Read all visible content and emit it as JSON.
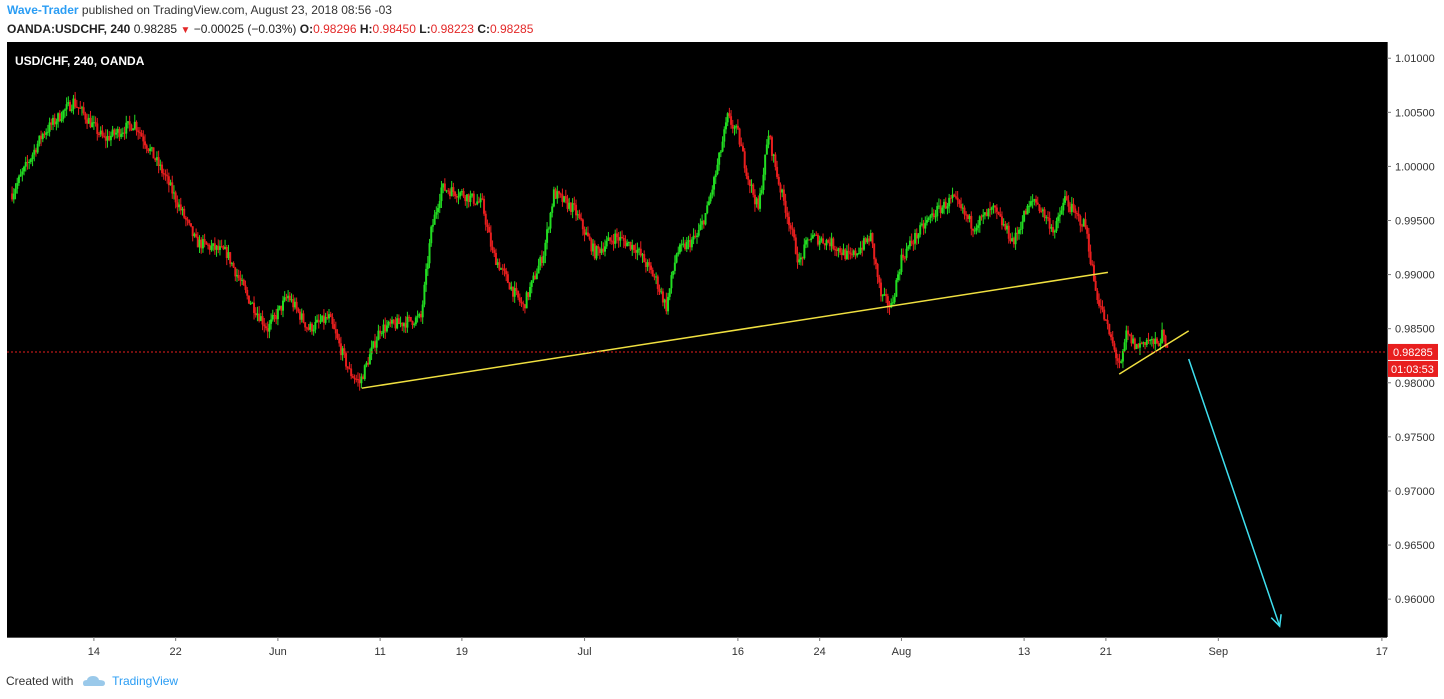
{
  "header": {
    "author": "Wave-Trader",
    "published_text": " published on TradingView.com, August 23, 2018 08:56 -03",
    "symbol": "OANDA:USDCHF, 240",
    "last": "0.98285",
    "change": "−0.00025 (−0.03%)",
    "o_label": "O:",
    "o_value": "0.98296",
    "h_label": "H:",
    "h_value": "0.98450",
    "l_label": "L:",
    "l_value": "0.98223",
    "c_label": "C:",
    "c_value": "0.98285"
  },
  "footer": {
    "created_with": "Created with",
    "brand": "TradingView"
  },
  "colors": {
    "background": "#000000",
    "bull": "#22dd22",
    "bear": "#e81e1e",
    "trendline": "#f0e040",
    "arrow": "#3fe0f0",
    "price_tag": "#e81e1e"
  },
  "chart_data": {
    "type": "candlestick",
    "title": "USD/CHF, 240, OANDA",
    "xlabel": "",
    "ylabel": "",
    "ylim": [
      0.9565,
      1.0115
    ],
    "y_ticks": [
      "1.01000",
      "1.00500",
      "1.00000",
      "0.99500",
      "0.99000",
      "0.98500",
      "0.98000",
      "0.97500",
      "0.97000",
      "0.96500",
      "0.96000"
    ],
    "x_ticks": [
      {
        "label": "14",
        "day": 14
      },
      {
        "label": "22",
        "day": 22
      },
      {
        "label": "Jun",
        "day": 32
      },
      {
        "label": "11",
        "day": 42
      },
      {
        "label": "19",
        "day": 50
      },
      {
        "label": "Jul",
        "day": 62
      },
      {
        "label": "16",
        "day": 77
      },
      {
        "label": "24",
        "day": 85
      },
      {
        "label": "Aug",
        "day": 93
      },
      {
        "label": "13",
        "day": 105
      },
      {
        "label": "21",
        "day": 113
      },
      {
        "label": "Sep",
        "day": 124
      },
      {
        "label": "17",
        "day": 140
      }
    ],
    "x_range_days": [
      5.5,
      140.5
    ],
    "series_anchors": [
      [
        6,
        0.9975
      ],
      [
        9,
        1.003
      ],
      [
        12,
        1.006
      ],
      [
        15,
        1.0025
      ],
      [
        18,
        1.004
      ],
      [
        21,
        0.999
      ],
      [
        24,
        0.993
      ],
      [
        27,
        0.992
      ],
      [
        29,
        0.988
      ],
      [
        31,
        0.985
      ],
      [
        33,
        0.988
      ],
      [
        35,
        0.985
      ],
      [
        37,
        0.986
      ],
      [
        39,
        0.981
      ],
      [
        40,
        0.98
      ],
      [
        42,
        0.985
      ],
      [
        44,
        0.9855
      ],
      [
        46,
        0.986
      ],
      [
        47,
        0.994
      ],
      [
        48,
        0.998
      ],
      [
        50,
        0.9975
      ],
      [
        52,
        0.9965
      ],
      [
        53,
        0.992
      ],
      [
        55,
        0.9885
      ],
      [
        56,
        0.987
      ],
      [
        58,
        0.992
      ],
      [
        59,
        0.9975
      ],
      [
        61,
        0.996
      ],
      [
        63,
        0.992
      ],
      [
        65,
        0.9935
      ],
      [
        67,
        0.9925
      ],
      [
        69,
        0.9895
      ],
      [
        70,
        0.987
      ],
      [
        71,
        0.992
      ],
      [
        73,
        0.9935
      ],
      [
        74,
        0.996
      ],
      [
        75,
        1.0
      ],
      [
        76,
        1.0045
      ],
      [
        77,
        1.003
      ],
      [
        78,
        0.999
      ],
      [
        79,
        0.996
      ],
      [
        80,
        1.003
      ],
      [
        81,
        0.9985
      ],
      [
        82,
        0.995
      ],
      [
        83,
        0.991
      ],
      [
        84,
        0.9935
      ],
      [
        86,
        0.993
      ],
      [
        88,
        0.9915
      ],
      [
        90,
        0.9935
      ],
      [
        91,
        0.988
      ],
      [
        92,
        0.987
      ],
      [
        93,
        0.9915
      ],
      [
        94,
        0.993
      ],
      [
        96,
        0.9955
      ],
      [
        98,
        0.997
      ],
      [
        100,
        0.9945
      ],
      [
        102,
        0.996
      ],
      [
        104,
        0.993
      ],
      [
        105,
        0.9955
      ],
      [
        106,
        0.997
      ],
      [
        108,
        0.994
      ],
      [
        109,
        0.997
      ],
      [
        110,
        0.9955
      ],
      [
        111,
        0.9945
      ],
      [
        112,
        0.9885
      ],
      [
        113,
        0.9855
      ],
      [
        114,
        0.9825
      ],
      [
        114.5,
        0.9815
      ],
      [
        115,
        0.9845
      ],
      [
        116,
        0.9833
      ],
      [
        117,
        0.984
      ],
      [
        118,
        0.9835
      ],
      [
        118.5,
        0.9844
      ],
      [
        119,
        0.9829
      ]
    ],
    "annotations": {
      "support_line": [
        [
          40.2,
          0.9795
        ],
        [
          113.2,
          0.9902
        ]
      ],
      "wedge_line": [
        [
          114.3,
          0.9808
        ],
        [
          121.1,
          0.9848
        ]
      ],
      "arrow": [
        [
          121.1,
          0.9822
        ],
        [
          130,
          0.9575
        ]
      ]
    },
    "last_price": 0.98285,
    "last_price_label": "0.98285",
    "countdown_label": "01:03:53"
  }
}
